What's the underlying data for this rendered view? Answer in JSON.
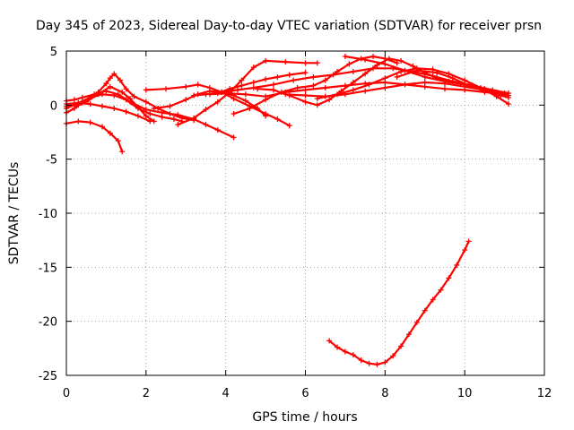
{
  "chart_data": {
    "type": "scatter",
    "title": "Day 345 of 2023, Sidereal Day-to-day VTEC variation (SDTVAR) for receiver prsn",
    "xlabel": "GPS time / hours",
    "ylabel": "SDTVAR / TECUs",
    "xlim": [
      0,
      12
    ],
    "ylim": [
      -25,
      5
    ],
    "xticks": [
      0,
      2,
      4,
      6,
      8,
      10,
      12
    ],
    "yticks": [
      5,
      0,
      -5,
      -10,
      -15,
      -20,
      -25
    ],
    "grid": true,
    "marker": "+",
    "color": "#ff0000",
    "series": [
      {
        "name": "s1",
        "x": [
          0.0,
          0.3,
          0.6,
          0.9,
          1.1,
          1.3,
          1.4
        ],
        "y": [
          -1.7,
          -1.5,
          -1.6,
          -2.0,
          -2.6,
          -3.3,
          -4.3
        ]
      },
      {
        "name": "s2",
        "x": [
          0.0,
          0.3,
          0.6,
          0.8,
          1.0,
          1.1,
          1.2,
          1.35,
          1.5,
          1.7,
          2.0,
          2.3,
          2.6,
          2.9,
          3.2
        ],
        "y": [
          -0.3,
          0.2,
          0.7,
          1.2,
          2.0,
          2.5,
          2.9,
          2.3,
          1.5,
          0.8,
          0.3,
          -0.3,
          -0.8,
          -1.2,
          -1.4
        ]
      },
      {
        "name": "s3",
        "x": [
          0.0,
          0.3,
          0.5,
          0.8,
          1.1,
          1.4,
          1.6,
          1.8,
          2.0,
          2.2
        ],
        "y": [
          -0.1,
          0.0,
          0.3,
          1.0,
          1.7,
          1.2,
          0.6,
          -0.2,
          -1.0,
          -1.5
        ]
      },
      {
        "name": "s4",
        "x": [
          0.0,
          0.2,
          0.4,
          0.7,
          1.0,
          1.3,
          1.6,
          2.0,
          2.4,
          2.8,
          3.2,
          3.5,
          3.8,
          4.2
        ],
        "y": [
          0.4,
          0.5,
          0.7,
          1.0,
          1.3,
          1.0,
          0.3,
          -0.4,
          -0.7,
          -0.9,
          -1.3,
          -1.8,
          -2.3,
          -3.0
        ]
      },
      {
        "name": "s5",
        "x": [
          0.0,
          0.2,
          0.4,
          0.6,
          0.9,
          1.2,
          1.5,
          1.8,
          2.1,
          2.4,
          2.7,
          2.9
        ],
        "y": [
          -0.7,
          -0.3,
          0.2,
          0.7,
          1.0,
          0.9,
          0.5,
          -0.3,
          -0.8,
          -1.1,
          -1.3,
          -1.5
        ]
      },
      {
        "name": "s6",
        "x": [
          0.0,
          0.3,
          0.6,
          0.9,
          1.2,
          1.5,
          1.8,
          2.1
        ],
        "y": [
          0.1,
          0.2,
          0.1,
          -0.1,
          -0.3,
          -0.6,
          -1.0,
          -1.5
        ]
      },
      {
        "name": "s7",
        "x": [
          2.0,
          2.5,
          3.0,
          3.3,
          3.6,
          3.9,
          4.2,
          4.6,
          5.0,
          5.3,
          5.6
        ],
        "y": [
          1.4,
          1.5,
          1.7,
          1.9,
          1.6,
          1.2,
          0.6,
          -0.1,
          -0.8,
          -1.3,
          -1.9
        ]
      },
      {
        "name": "s8",
        "x": [
          2.2,
          2.6,
          3.0,
          3.3,
          3.6,
          3.9,
          4.2,
          4.5,
          4.8,
          5.0
        ],
        "y": [
          -0.3,
          -0.1,
          0.5,
          1.0,
          1.3,
          1.2,
          0.9,
          0.4,
          -0.3,
          -1.0
        ]
      },
      {
        "name": "s9",
        "x": [
          2.8,
          3.2,
          3.5,
          3.8,
          4.1,
          4.4,
          4.7,
          5.0,
          5.5,
          6.0,
          6.3
        ],
        "y": [
          -1.8,
          -1.2,
          -0.4,
          0.3,
          1.2,
          2.3,
          3.5,
          4.1,
          4.0,
          3.9,
          3.9
        ]
      },
      {
        "name": "s10",
        "x": [
          3.2,
          3.5,
          3.9,
          4.3,
          4.7,
          5.2,
          5.7,
          6.2,
          6.7,
          7.2,
          7.7,
          8.2,
          8.7,
          9.2,
          9.7,
          10.2,
          10.7,
          11.1
        ],
        "y": [
          0.9,
          1.0,
          1.2,
          1.4,
          1.6,
          1.9,
          2.3,
          2.6,
          2.8,
          3.1,
          3.4,
          3.4,
          3.1,
          2.7,
          2.2,
          1.8,
          1.4,
          1.1
        ]
      },
      {
        "name": "s11",
        "x": [
          3.6,
          4.0,
          4.5,
          5.0,
          5.5,
          6.0,
          6.5,
          7.0,
          7.5,
          8.0,
          8.5,
          9.0,
          9.5,
          10.0,
          10.5,
          11.0
        ],
        "y": [
          1.0,
          1.1,
          1.0,
          0.8,
          1.2,
          1.4,
          1.6,
          1.8,
          2.0,
          2.1,
          1.9,
          1.7,
          1.5,
          1.4,
          1.2,
          1.0
        ]
      },
      {
        "name": "s12",
        "x": [
          3.8,
          4.1,
          4.4,
          4.7,
          5.0,
          5.3,
          5.6,
          6.0
        ],
        "y": [
          1.1,
          1.5,
          1.8,
          2.1,
          2.4,
          2.6,
          2.8,
          3.0
        ]
      },
      {
        "name": "s13",
        "x": [
          4.2,
          4.6,
          5.0,
          5.4,
          5.8,
          6.2,
          6.5,
          6.8,
          7.1,
          7.4,
          7.7,
          8.0,
          8.3
        ],
        "y": [
          -0.8,
          -0.3,
          0.5,
          1.2,
          1.6,
          1.8,
          2.3,
          3.1,
          3.8,
          4.3,
          4.5,
          4.3,
          3.9
        ]
      },
      {
        "name": "s14",
        "x": [
          4.8,
          5.2,
          5.6,
          6.0,
          6.3,
          6.6,
          6.9,
          7.2,
          7.5,
          7.8,
          8.1,
          8.4,
          8.7,
          9.0,
          9.3,
          9.6,
          9.9,
          10.2,
          10.5,
          10.8,
          11.1
        ],
        "y": [
          1.5,
          1.4,
          0.9,
          0.3,
          0.0,
          0.5,
          1.3,
          2.1,
          2.9,
          3.7,
          4.3,
          4.1,
          3.6,
          3.0,
          2.5,
          2.2,
          2.0,
          1.8,
          1.5,
          1.2,
          0.9
        ]
      },
      {
        "name": "s15",
        "x": [
          5.5,
          6.0,
          6.5,
          7.0,
          7.5,
          8.0,
          8.5,
          9.0,
          9.5,
          10.0,
          10.5,
          11.0
        ],
        "y": [
          1.0,
          0.9,
          0.8,
          1.0,
          1.3,
          1.6,
          1.9,
          2.1,
          2.0,
          1.7,
          1.4,
          1.0
        ]
      },
      {
        "name": "s16",
        "x": [
          6.3,
          6.8,
          7.2,
          7.6,
          8.0,
          8.4,
          8.8,
          9.2,
          9.6,
          10.0,
          10.4,
          10.8,
          11.1
        ],
        "y": [
          0.6,
          1.0,
          1.4,
          1.9,
          2.5,
          3.1,
          3.4,
          3.3,
          2.9,
          2.3,
          1.6,
          0.8,
          0.1
        ]
      },
      {
        "name": "s17",
        "x": [
          7.0,
          7.5,
          8.0,
          8.5,
          9.0,
          9.5,
          10.0,
          10.5,
          11.0
        ],
        "y": [
          4.5,
          4.2,
          3.8,
          3.2,
          2.6,
          2.2,
          1.9,
          1.5,
          1.1
        ]
      },
      {
        "name": "s18",
        "x": [
          8.3,
          8.8,
          9.3,
          9.7,
          10.1,
          10.5,
          10.9,
          11.1
        ],
        "y": [
          2.6,
          3.2,
          3.0,
          2.5,
          1.8,
          1.3,
          0.9,
          0.7
        ]
      },
      {
        "name": "s19",
        "x": [
          6.6,
          6.8,
          7.0,
          7.2,
          7.4,
          7.6,
          7.8,
          8.0,
          8.2,
          8.4,
          8.6,
          8.8,
          9.0,
          9.2,
          9.4,
          9.6,
          9.8,
          10.0,
          10.1
        ],
        "y": [
          -21.8,
          -22.4,
          -22.8,
          -23.1,
          -23.6,
          -23.9,
          -24.0,
          -23.8,
          -23.2,
          -22.3,
          -21.2,
          -20.1,
          -19.0,
          -18.0,
          -17.1,
          -16.0,
          -14.8,
          -13.4,
          -12.6
        ]
      }
    ]
  }
}
